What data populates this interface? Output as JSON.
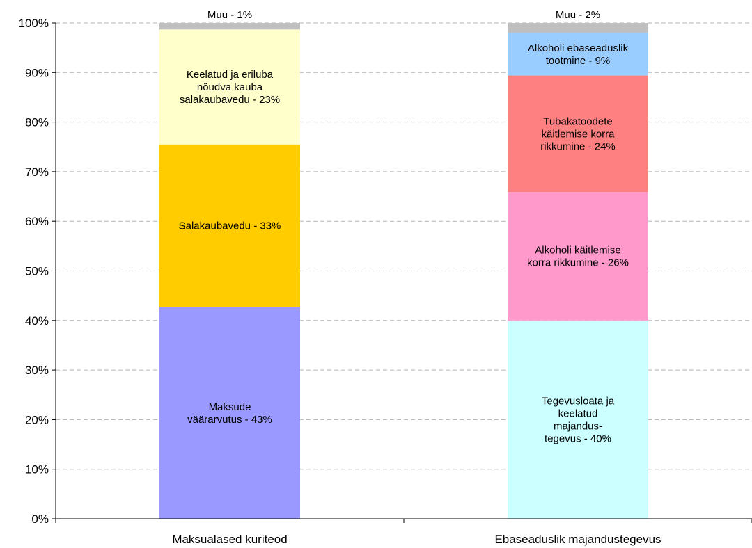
{
  "chart_data": {
    "type": "bar",
    "stacked": true,
    "grid": true,
    "legend": "none",
    "ylim": [
      0,
      100
    ],
    "yticks": [
      "0%",
      "10%",
      "20%",
      "30%",
      "40%",
      "50%",
      "60%",
      "70%",
      "80%",
      "90%",
      "100%"
    ],
    "categories": [
      "Maksualased kuriteod",
      "Ebaseaduslik majandustegevus"
    ],
    "stacks": [
      {
        "segments": [
          {
            "label": [
              "Maksude",
              "väärarvutus - 43%"
            ],
            "value": 42.7,
            "color": "#9999ff"
          },
          {
            "label": [
              "Salakaubavedu - 33%"
            ],
            "value": 32.8,
            "color": "#ffcc00"
          },
          {
            "label": [
              "Keelatud ja eriluba",
              "nõudva kauba",
              "salakaubavedu - 23%"
            ],
            "value": 23.2,
            "color": "#ffffcc"
          },
          {
            "label": [
              "Muu - 1%"
            ],
            "value": 1.3,
            "color": "#c0c0c0",
            "label_outside": true
          }
        ]
      },
      {
        "segments": [
          {
            "label": [
              "Tegevusloata ja",
              "keelatud",
              "majandus-",
              "tegevus - 40%"
            ],
            "value": 40.0,
            "color": "#ccffff"
          },
          {
            "label": [
              "Alkoholi käitlemise",
              "korra rikkumine - 26%"
            ],
            "value": 25.9,
            "color": "#ff99cc"
          },
          {
            "label": [
              "Tubakatoodete",
              "käitlemise korra",
              "rikkumine - 24%"
            ],
            "value": 23.5,
            "color": "#ff8080"
          },
          {
            "label": [
              "Alkoholi ebaseaduslik",
              "tootmine - 9%"
            ],
            "value": 8.6,
            "color": "#99ccff"
          },
          {
            "label": [
              "Muu - 2%"
            ],
            "value": 2.0,
            "color": "#c0c0c0",
            "label_outside": true
          }
        ]
      }
    ]
  }
}
